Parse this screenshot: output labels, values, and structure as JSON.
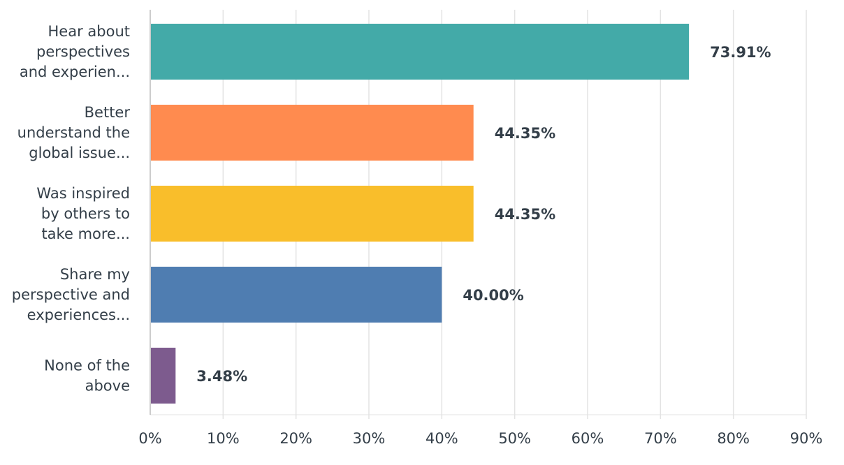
{
  "chart_data": {
    "type": "bar",
    "orientation": "horizontal",
    "categories": [
      [
        "Hear about",
        "perspectives",
        "and experien..."
      ],
      [
        "Better",
        "understand the",
        "global issue..."
      ],
      [
        "Was inspired",
        "by others to",
        "take more..."
      ],
      [
        "Share my",
        "perspective and",
        "experiences..."
      ],
      [
        "None of the",
        "above"
      ]
    ],
    "values": [
      73.91,
      44.35,
      44.35,
      40.0,
      3.48
    ],
    "value_labels": [
      "73.91%",
      "44.35%",
      "44.35%",
      "40.00%",
      "3.48%"
    ],
    "colors": [
      "#43aaa8",
      "#ff8b4f",
      "#f9be2b",
      "#4f7db1",
      "#7d5b8e"
    ],
    "xlim": [
      0,
      90
    ],
    "x_ticks": [
      "0%",
      "10%",
      "20%",
      "30%",
      "40%",
      "50%",
      "60%",
      "70%",
      "80%",
      "90%"
    ],
    "grid": true,
    "title": "",
    "xlabel": "",
    "ylabel": ""
  }
}
